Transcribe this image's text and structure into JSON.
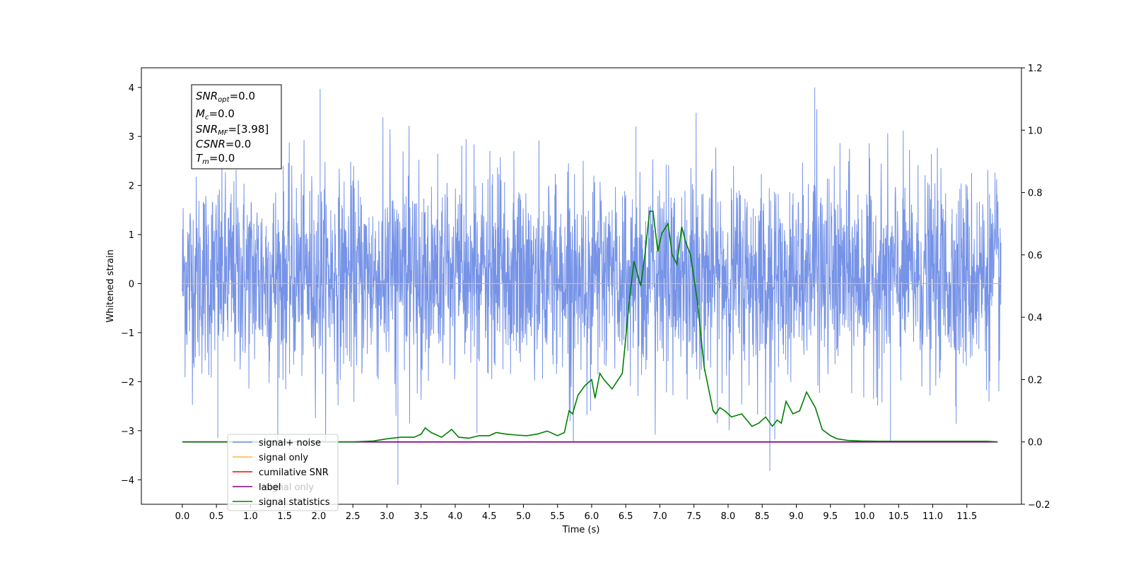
{
  "chart_data": {
    "type": "line",
    "xlabel": "Time (s)",
    "ylabel": "Whitened strain",
    "xlim": [
      -0.6,
      12.3
    ],
    "ylim": [
      -4.5,
      4.4
    ],
    "y2lim": [
      -0.2,
      1.2
    ],
    "x_ticks": [
      "0.0",
      "0.5",
      "1.0",
      "1.5",
      "2.0",
      "2.5",
      "3.0",
      "3.5",
      "4.0",
      "4.5",
      "5.0",
      "5.5",
      "6.0",
      "6.5",
      "7.0",
      "7.5",
      "8.0",
      "8.5",
      "9.0",
      "9.5",
      "10.0",
      "10.5",
      "11.0",
      "11.5"
    ],
    "y_ticks": [
      "4",
      "3",
      "2",
      "1",
      "0",
      "−1",
      "−2",
      "−3",
      "−4"
    ],
    "y2_ticks": [
      "1.2",
      "1.0",
      "0.8",
      "0.6",
      "0.4",
      "0.2",
      "0.0",
      "−0.2"
    ],
    "colors": {
      "signal_noise": "#6f8de6",
      "signal_only": "#ffb347",
      "cumulative_snr": "#ff0000",
      "label": "#800080",
      "signal_statistics": "#008000"
    },
    "legend": {
      "placement": "lower-left",
      "entries": [
        "signal+ noise",
        "signal only",
        "cumilative SNR",
        "label",
        "signal statistics"
      ],
      "overlapped_text": "signal only"
    },
    "annotation": {
      "lines": [
        {
          "main": "SNR",
          "sub": "opt",
          "value": "=0.0"
        },
        {
          "main": "M",
          "sub": "c",
          "value": "=0.0"
        },
        {
          "main": "SNR",
          "sub": "MF",
          "value": "=[3.98]"
        },
        {
          "main": "CSNR",
          "sub": "",
          "value": "=0.0"
        },
        {
          "main": "T",
          "sub": "m",
          "value": "=0.0"
        }
      ]
    },
    "series": [
      {
        "name": "signal+ noise",
        "axis": "left",
        "x_range": [
          0.0,
          12.0
        ],
        "amplitude_range": [
          -4.1,
          4.0
        ],
        "note": "whitened noise trace"
      },
      {
        "name": "signal only",
        "axis": "left",
        "x": [
          0.0,
          12.0
        ],
        "y": [
          0.0,
          0.0
        ]
      },
      {
        "name": "label",
        "axis": "right",
        "x": [
          0.0,
          11.95
        ],
        "y": [
          0.0,
          0.0
        ]
      },
      {
        "name": "signal statistics",
        "axis": "right",
        "x": [
          0.0,
          0.5,
          1.0,
          1.5,
          2.0,
          2.5,
          2.8,
          3.0,
          3.2,
          3.4,
          3.5,
          3.56,
          3.65,
          3.8,
          3.95,
          4.05,
          4.2,
          4.35,
          4.5,
          4.6,
          4.75,
          4.9,
          5.05,
          5.2,
          5.35,
          5.5,
          5.6,
          5.67,
          5.72,
          5.8,
          5.9,
          6.0,
          6.05,
          6.12,
          6.18,
          6.3,
          6.45,
          6.55,
          6.62,
          6.72,
          6.78,
          6.85,
          6.9,
          6.97,
          7.03,
          7.12,
          7.18,
          7.25,
          7.32,
          7.38,
          7.45,
          7.55,
          7.65,
          7.78,
          7.82,
          7.88,
          7.95,
          8.05,
          8.2,
          8.35,
          8.45,
          8.55,
          8.65,
          8.72,
          8.78,
          8.85,
          8.95,
          9.05,
          9.15,
          9.28,
          9.38,
          9.5,
          9.6,
          9.75,
          9.95,
          10.2,
          10.5,
          10.8,
          11.0,
          11.2,
          11.5,
          11.8,
          11.95
        ],
        "y": [
          0.0,
          0.0,
          0.0,
          0.0,
          0.0,
          0.0,
          0.003,
          0.01,
          0.015,
          0.015,
          0.025,
          0.045,
          0.03,
          0.015,
          0.04,
          0.015,
          0.012,
          0.02,
          0.02,
          0.03,
          0.025,
          0.022,
          0.02,
          0.025,
          0.035,
          0.02,
          0.03,
          0.1,
          0.09,
          0.15,
          0.18,
          0.2,
          0.14,
          0.22,
          0.2,
          0.17,
          0.22,
          0.45,
          0.58,
          0.5,
          0.6,
          0.74,
          0.74,
          0.61,
          0.67,
          0.7,
          0.6,
          0.57,
          0.69,
          0.64,
          0.6,
          0.45,
          0.24,
          0.1,
          0.09,
          0.11,
          0.1,
          0.08,
          0.09,
          0.05,
          0.06,
          0.08,
          0.05,
          0.07,
          0.06,
          0.13,
          0.09,
          0.1,
          0.16,
          0.11,
          0.04,
          0.02,
          0.01,
          0.005,
          0.003,
          0.002,
          0.002,
          0.002,
          0.002,
          0.002,
          0.002,
          0.002,
          0.0
        ]
      }
    ]
  }
}
